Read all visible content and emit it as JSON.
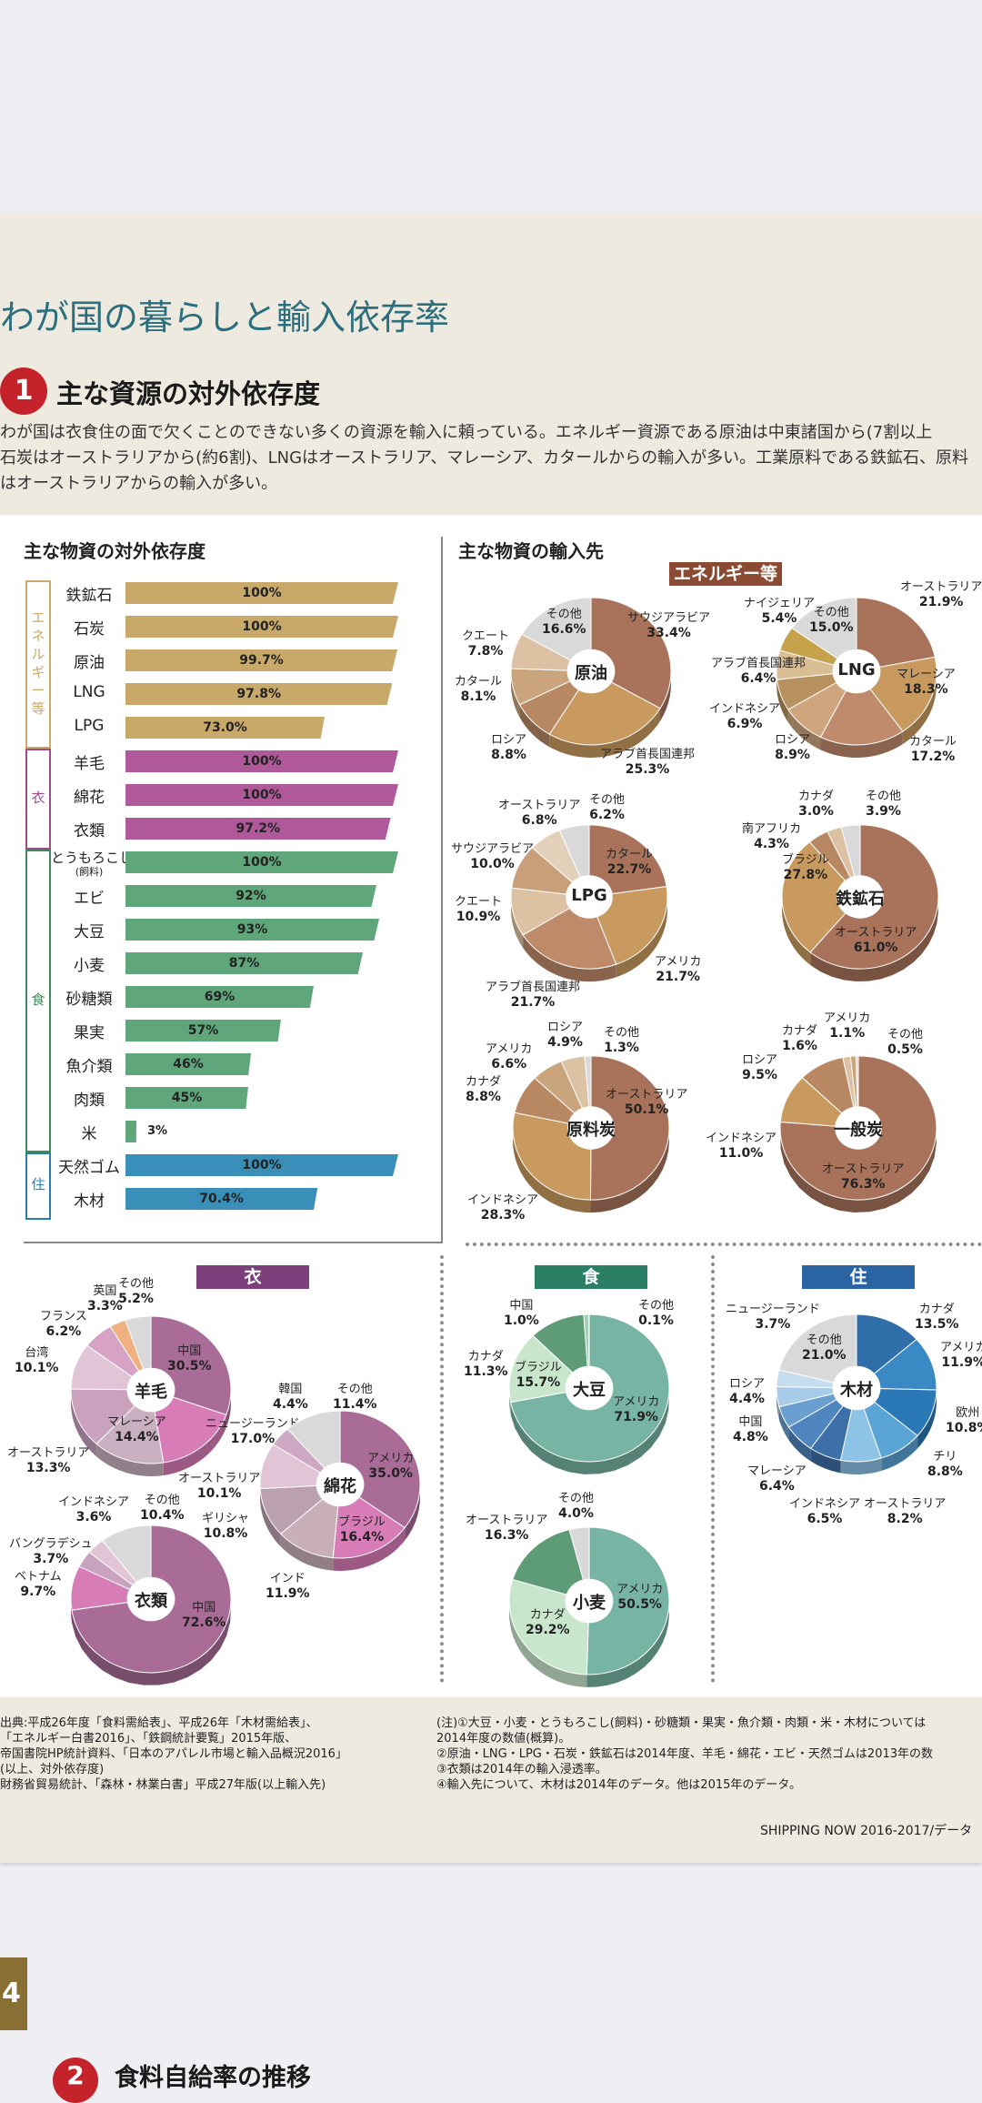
{
  "heading": "わが国の暮らしと輸入依存率",
  "section": {
    "num": "1",
    "title": "主な資源の対外依存度"
  },
  "intro": [
    "わが国は衣食住の面で欠くことのできない多くの資源を輸入に頼っている。エネルギー資源である原油は中東諸国から(7割以上",
    "石炭はオーストラリアから(約6割)、LNGはオーストラリア、マレーシア、カタールからの輸入が多い。工業原料である鉄鉱石、原料",
    "はオーストラリアからの輸入が多い。"
  ],
  "left_title": "主な物資の対外依存度",
  "right_title": "主な物資の輸入先",
  "groups": [
    {
      "label": "エネルギー等",
      "color": "#c8a96a"
    },
    {
      "label": "衣",
      "color": "#b0599a"
    },
    {
      "label": "食",
      "color": "#5fa77a"
    },
    {
      "label": "住",
      "color": "#3a8fb8"
    }
  ],
  "dependency": [
    {
      "name": "鉄鉱石",
      "value": "100%",
      "pct": 100,
      "group": 0
    },
    {
      "name": "石炭",
      "value": "100%",
      "pct": 100,
      "group": 0
    },
    {
      "name": "原油",
      "value": "99.7%",
      "pct": 99.7,
      "group": 0
    },
    {
      "name": "LNG",
      "value": "97.8%",
      "pct": 97.8,
      "group": 0
    },
    {
      "name": "LPG",
      "value": "73.0%",
      "pct": 73.0,
      "group": 0
    },
    {
      "name": "羊毛",
      "value": "100%",
      "pct": 100,
      "group": 1
    },
    {
      "name": "綿花",
      "value": "100%",
      "pct": 100,
      "group": 1
    },
    {
      "name": "衣類",
      "value": "97.2%",
      "pct": 97.2,
      "group": 1
    },
    {
      "name": "とうもろこし",
      "sub": "(飼料)",
      "value": "100%",
      "pct": 100,
      "group": 2
    },
    {
      "name": "エビ",
      "value": "92%",
      "pct": 92,
      "group": 2
    },
    {
      "name": "大豆",
      "value": "93%",
      "pct": 93,
      "group": 2
    },
    {
      "name": "小麦",
      "value": "87%",
      "pct": 87,
      "group": 2
    },
    {
      "name": "砂糖類",
      "value": "69%",
      "pct": 69,
      "group": 2
    },
    {
      "name": "果実",
      "value": "57%",
      "pct": 57,
      "group": 2
    },
    {
      "name": "魚介類",
      "value": "46%",
      "pct": 46,
      "group": 2
    },
    {
      "name": "肉類",
      "value": "45%",
      "pct": 45,
      "group": 2
    },
    {
      "name": "米",
      "value": "3%",
      "pct": 3,
      "group": 2
    },
    {
      "name": "天然ゴム",
      "value": "100%",
      "pct": 100,
      "group": 3
    },
    {
      "name": "木材",
      "value": "70.4%",
      "pct": 70.4,
      "group": 3
    }
  ],
  "cat_tags": {
    "energy": "エネルギー等",
    "clothing": "衣",
    "food": "食",
    "housing": "住"
  },
  "pies": {
    "crude": {
      "title": "原油",
      "slices": [
        {
          "name": "サウジアラビア",
          "pct": 33.4,
          "color": "#a8735a"
        },
        {
          "name": "アラブ首長国連邦",
          "pct": 25.3,
          "color": "#c99a60"
        },
        {
          "name": "ロシア",
          "pct": 8.8,
          "color": "#b88863"
        },
        {
          "name": "カタール",
          "pct": 8.1,
          "color": "#c9a47c"
        },
        {
          "name": "クエート",
          "pct": 7.8,
          "color": "#dcc2a2"
        },
        {
          "name": "その他",
          "pct": 16.6,
          "color": "#d9d9d9"
        }
      ],
      "labels": [
        "サウジアラビア",
        "33.4%",
        "アラブ首長国連邦",
        "25.3%",
        "ロシア",
        "8.8%",
        "カタール",
        "8.1%",
        "クエート",
        "7.8%",
        "その他",
        "16.6%"
      ]
    },
    "lng": {
      "title": "LNG",
      "slices": [
        {
          "name": "オーストラリア",
          "pct": 21.9,
          "color": "#a8735a"
        },
        {
          "name": "マレーシア",
          "pct": 18.3,
          "color": "#c99a60"
        },
        {
          "name": "カタール",
          "pct": 17.2,
          "color": "#c08a6c"
        },
        {
          "name": "ロシア",
          "pct": 8.9,
          "color": "#cfa57e"
        },
        {
          "name": "インドネシア",
          "pct": 6.9,
          "color": "#b8925e"
        },
        {
          "name": "アラブ首長国連邦",
          "pct": 6.4,
          "color": "#d9bd95"
        },
        {
          "name": "ナイジェリア",
          "pct": 5.4,
          "color": "#c6a24d"
        },
        {
          "name": "その他",
          "pct": 15.0,
          "color": "#d9d9d9"
        }
      ],
      "labels": [
        "オーストラリア",
        "21.9%",
        "マレーシア",
        "18.3%",
        "カタール",
        "17.2%",
        "ロシア",
        "8.9%",
        "インドネシア",
        "6.9%",
        "アラブ首長国連邦",
        "6.4%",
        "ナイジェリア",
        "5.4%",
        "その他",
        "15.0%"
      ]
    },
    "lpg": {
      "title": "LPG",
      "slices": [
        {
          "name": "カタール",
          "pct": 22.7,
          "color": "#a8735a"
        },
        {
          "name": "アメリカ",
          "pct": 21.7,
          "color": "#c99a60"
        },
        {
          "name": "アラブ首長国連邦",
          "pct": 21.7,
          "color": "#bf8a6a"
        },
        {
          "name": "クエート",
          "pct": 10.9,
          "color": "#dcc2a2"
        },
        {
          "name": "サウジアラビア",
          "pct": 10.0,
          "color": "#c7a07a"
        },
        {
          "name": "オーストラリア",
          "pct": 6.8,
          "color": "#e2d0b8"
        },
        {
          "name": "その他",
          "pct": 6.2,
          "color": "#d9d9d9"
        }
      ],
      "labels": [
        "カタール",
        "22.7%",
        "アメリカ",
        "21.7%",
        "アラブ首長国連邦",
        "21.7%",
        "クエート",
        "10.9%",
        "サウジアラビア",
        "10.0%",
        "オーストラリア",
        "6.8%",
        "その他",
        "6.2%"
      ]
    },
    "iron": {
      "title": "鉄鉱石",
      "slices": [
        {
          "name": "オーストラリア",
          "pct": 61.0,
          "color": "#a8735a"
        },
        {
          "name": "ブラジル",
          "pct": 27.8,
          "color": "#c99a60"
        },
        {
          "name": "南アフリカ",
          "pct": 4.3,
          "color": "#b88863"
        },
        {
          "name": "カナダ",
          "pct": 3.0,
          "color": "#dcc2a2"
        },
        {
          "name": "その他",
          "pct": 3.9,
          "color": "#d9d9d9"
        }
      ],
      "labels": [
        "オーストラリア",
        "61.0%",
        "ブラジル",
        "27.8%",
        "南アフリカ",
        "4.3%",
        "カナダ",
        "3.0%",
        "その他",
        "3.9%"
      ]
    },
    "coking": {
      "title": "原料炭",
      "slices": [
        {
          "name": "オーストラリア",
          "pct": 50.1,
          "color": "#a8735a"
        },
        {
          "name": "インドネシア",
          "pct": 28.3,
          "color": "#c99a60"
        },
        {
          "name": "カナダ",
          "pct": 8.8,
          "color": "#b88863"
        },
        {
          "name": "アメリカ",
          "pct": 6.6,
          "color": "#c9a47c"
        },
        {
          "name": "ロシア",
          "pct": 4.9,
          "color": "#dcc2a2"
        },
        {
          "name": "その他",
          "pct": 1.3,
          "color": "#d9d9d9"
        }
      ],
      "labels": [
        "オーストラリア",
        "50.1%",
        "インドネシア",
        "28.3%",
        "カナダ",
        "8.8%",
        "アメリカ",
        "6.6%",
        "ロシア",
        "4.9%",
        "その他",
        "1.3%"
      ]
    },
    "steam": {
      "title": "一般炭",
      "slices": [
        {
          "name": "オーストラリア",
          "pct": 76.3,
          "color": "#a8735a"
        },
        {
          "name": "インドネシア",
          "pct": 11.0,
          "color": "#c99a60"
        },
        {
          "name": "ロシア",
          "pct": 9.5,
          "color": "#b88863"
        },
        {
          "name": "カナダ",
          "pct": 1.6,
          "color": "#dcc2a2"
        },
        {
          "name": "アメリカ",
          "pct": 1.1,
          "color": "#c9a47c"
        },
        {
          "name": "その他",
          "pct": 0.5,
          "color": "#d9d9d9"
        }
      ],
      "labels": [
        "オーストラリア",
        "76.3%",
        "インドネシア",
        "11.0%",
        "ロシア",
        "9.5%",
        "カナダ",
        "1.6%",
        "アメリカ",
        "1.1%",
        "その他",
        "0.5%"
      ]
    },
    "wool": {
      "title": "羊毛",
      "slices": [
        {
          "name": "中国",
          "pct": 30.5,
          "color": "#a86c97"
        },
        {
          "name": "ニュージーランド",
          "pct": 17.0,
          "color": "#d87cb8"
        },
        {
          "name": "マレーシア",
          "pct": 14.4,
          "color": "#c9b0c0"
        },
        {
          "name": "オーストラリア",
          "pct": 13.3,
          "color": "#caa2bf"
        },
        {
          "name": "台湾",
          "pct": 10.1,
          "color": "#e1c4d6"
        },
        {
          "name": "フランス",
          "pct": 6.2,
          "color": "#d6a3c4"
        },
        {
          "name": "英国",
          "pct": 3.3,
          "color": "#f0b080"
        },
        {
          "name": "その他",
          "pct": 5.2,
          "color": "#d9d9d9"
        }
      ],
      "labels": [
        "中国",
        "30.5%",
        "ニュージーランド",
        "17.0%",
        "マレーシア",
        "14.4%",
        "オーストラリア",
        "13.3%",
        "台湾",
        "10.1%",
        "フランス",
        "6.2%",
        "英国",
        "3.3%",
        "その他",
        "5.2%"
      ]
    },
    "cotton": {
      "title": "綿花",
      "slices": [
        {
          "name": "アメリカ",
          "pct": 35.0,
          "color": "#a86c97"
        },
        {
          "name": "ブラジル",
          "pct": 16.4,
          "color": "#d87cb8"
        },
        {
          "name": "インド",
          "pct": 11.9,
          "color": "#c9b0b8"
        },
        {
          "name": "ギリシャ",
          "pct": 10.8,
          "color": "#bba0b0"
        },
        {
          "name": "オーストラリア",
          "pct": 10.1,
          "color": "#e1c4d6"
        },
        {
          "name": "韓国",
          "pct": 4.4,
          "color": "#cfa8c4"
        },
        {
          "name": "その他",
          "pct": 11.4,
          "color": "#d9d9d9"
        }
      ],
      "labels": [
        "アメリカ",
        "35.0%",
        "ブラジル",
        "16.4%",
        "インド",
        "11.9%",
        "ギリシャ",
        "10.8%",
        "オーストラリア",
        "10.1%",
        "韓国",
        "4.4%",
        "その他",
        "11.4%"
      ]
    },
    "garments": {
      "title": "衣類",
      "slices": [
        {
          "name": "中国",
          "pct": 72.6,
          "color": "#a86c97"
        },
        {
          "name": "ベトナム",
          "pct": 9.7,
          "color": "#d87cb8"
        },
        {
          "name": "バングラデシュ",
          "pct": 3.7,
          "color": "#c9a2bf"
        },
        {
          "name": "インドネシア",
          "pct": 3.6,
          "color": "#e1c4d6"
        },
        {
          "name": "その他",
          "pct": 10.4,
          "color": "#d9d9d9"
        }
      ],
      "labels": [
        "中国",
        "72.6%",
        "ベトナム",
        "9.7%",
        "バングラデシュ",
        "3.7%",
        "インドネシア",
        "3.6%",
        "その他",
        "10.4%"
      ]
    },
    "soy": {
      "title": "大豆",
      "slices": [
        {
          "name": "アメリカ",
          "pct": 71.9,
          "color": "#78b4a4"
        },
        {
          "name": "ブラジル",
          "pct": 15.7,
          "color": "#c8e6cc"
        },
        {
          "name": "カナダ",
          "pct": 11.3,
          "color": "#5e9c78"
        },
        {
          "name": "中国",
          "pct": 1.0,
          "color": "#a3cfb4"
        },
        {
          "name": "その他",
          "pct": 0.1,
          "color": "#d9d9d9"
        }
      ],
      "labels": [
        "アメリカ",
        "71.9%",
        "ブラジル",
        "15.7%",
        "カナダ",
        "11.3%",
        "中国",
        "1.0%",
        "その他",
        "0.1%"
      ]
    },
    "wheat": {
      "title": "小麦",
      "slices": [
        {
          "name": "アメリカ",
          "pct": 50.5,
          "color": "#78b4a4"
        },
        {
          "name": "カナダ",
          "pct": 29.2,
          "color": "#c8e6cc"
        },
        {
          "name": "オーストラリア",
          "pct": 16.3,
          "color": "#5e9c78"
        },
        {
          "name": "その他",
          "pct": 4.0,
          "color": "#d9d9d9"
        }
      ],
      "labels": [
        "アメリカ",
        "50.5%",
        "カナダ",
        "29.2%",
        "オーストラリア",
        "16.3%",
        "その他",
        "4.0%"
      ]
    },
    "timber": {
      "title": "木材",
      "slices": [
        {
          "name": "カナダ",
          "pct": 13.5,
          "color": "#2f6ea8"
        },
        {
          "name": "アメリカ",
          "pct": 11.9,
          "color": "#3a88c4"
        },
        {
          "name": "欧州",
          "pct": 10.8,
          "color": "#2a78b5"
        },
        {
          "name": "チリ",
          "pct": 8.8,
          "color": "#5aa4d6"
        },
        {
          "name": "オーストラリア",
          "pct": 8.2,
          "color": "#8cc3e6"
        },
        {
          "name": "インドネシア",
          "pct": 6.5,
          "color": "#3d6fa8"
        },
        {
          "name": "マレーシア",
          "pct": 6.4,
          "color": "#4f86c0"
        },
        {
          "name": "中国",
          "pct": 4.8,
          "color": "#6a9fd2"
        },
        {
          "name": "ロシア",
          "pct": 4.4,
          "color": "#a7cbe8"
        },
        {
          "name": "ニュージーランド",
          "pct": 3.7,
          "color": "#c6ddf0"
        },
        {
          "name": "その他",
          "pct": 21.0,
          "color": "#d9d9d9"
        }
      ],
      "labels": [
        "カナダ",
        "13.5%",
        "アメリカ",
        "11.9%",
        "欧州",
        "10.8%",
        "チリ",
        "8.8%",
        "オーストラリア",
        "8.2%",
        "インドネシア",
        "6.5%",
        "マレーシア",
        "6.4%",
        "中国",
        "4.8%",
        "ロシア",
        "4.4%",
        "ニュージーランド",
        "3.7%",
        "その他",
        "21.0%"
      ]
    }
  },
  "footer_source": [
    "出典:平成26年度「食料需給表」、平成26年「木材需給表」、",
    "  「エネルギー白書2016」、「鉄鋼統計要覧」2015年版、",
    "  帝国書院HP統計資料、「日本のアパレル市場と輸入品概況2016」",
    "  (以上、対外依存度)",
    "  財務省貿易統計、「森林・林業白書」平成27年版(以上輸入先)"
  ],
  "footer_notes": [
    "(注)①大豆・小麦・とうもろこし(飼料)・砂糖類・果実・魚介類・肉類・米・木材については",
    "      2014年度の数値(概算)。",
    "    ②原油・LNG・LPG・石炭・鉄鉱石は2014年度、羊毛・綿花・エビ・天然ゴムは2013年の数",
    "    ③衣類は2014年の輸入浸透率。",
    "    ④輸入先について、木材は2014年のデータ。他は2015年のデータ。"
  ],
  "footer_right": "SHIPPING NOW 2016-2017/データ",
  "page_number": "4",
  "section2": {
    "num": "2",
    "title": "食料自給率の推移"
  }
}
